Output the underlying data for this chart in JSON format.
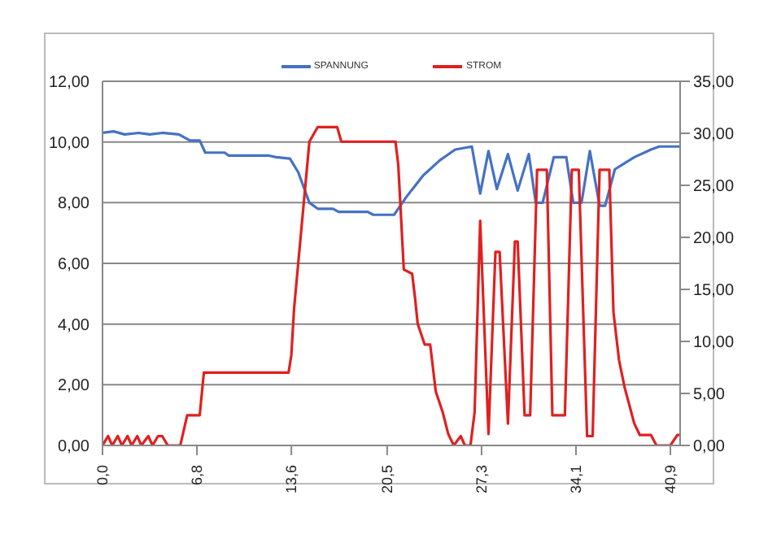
{
  "chart_data": {
    "type": "line",
    "xlim": [
      0,
      41.6
    ],
    "xticks": [
      {
        "value": 0,
        "label": "0,0"
      },
      {
        "value": 6.8,
        "label": "6,8"
      },
      {
        "value": 13.6,
        "label": "13,6"
      },
      {
        "value": 20.5,
        "label": "20,5"
      },
      {
        "value": 27.3,
        "label": "27,3"
      },
      {
        "value": 34.1,
        "label": "34,1"
      },
      {
        "value": 40.9,
        "label": "40,9"
      }
    ],
    "ylim": [
      0,
      12
    ],
    "yticks": [
      {
        "value": 0,
        "label": "0,00"
      },
      {
        "value": 2,
        "label": "2,00"
      },
      {
        "value": 4,
        "label": "4,00"
      },
      {
        "value": 6,
        "label": "6,00"
      },
      {
        "value": 8,
        "label": "8,00"
      },
      {
        "value": 10,
        "label": "10,00"
      },
      {
        "value": 12,
        "label": "12,00"
      }
    ],
    "y2lim": [
      0,
      35
    ],
    "y2ticks": [
      {
        "value": 0,
        "label": "0,00"
      },
      {
        "value": 5,
        "label": "5,00"
      },
      {
        "value": 10,
        "label": "10,00"
      },
      {
        "value": 15,
        "label": "15,00"
      },
      {
        "value": 20,
        "label": "20,00"
      },
      {
        "value": 25,
        "label": "25,00"
      },
      {
        "value": 30,
        "label": "30,00"
      },
      {
        "value": 35,
        "label": "35,00"
      }
    ],
    "grid": "y",
    "legend": "top",
    "marker": "none",
    "line_style": "solid",
    "series": [
      {
        "name": "SPANNUNG",
        "color": "#4472c4",
        "x": [
          0,
          0.8,
          1.6,
          2.6,
          3.4,
          4.3,
          5.5,
          6.3,
          7.0,
          7.4,
          8.8,
          9.1,
          12.0,
          12.5,
          13.5,
          14.1,
          14.9,
          15.5,
          16.6,
          17.0,
          19.1,
          19.5,
          21.0,
          21.9,
          23.1,
          24.3,
          25.4,
          26.6,
          27.2,
          27.8,
          28.4,
          29.2,
          29.9,
          30.7,
          31.2,
          31.7,
          32.5,
          33.4,
          33.9,
          34.5,
          35.1,
          35.8,
          36.2,
          36.9,
          38.3,
          39.5,
          40.1,
          41.6
        ],
        "values": [
          10.3,
          10.35,
          10.25,
          10.3,
          10.25,
          10.3,
          10.25,
          10.05,
          10.05,
          9.65,
          9.65,
          9.55,
          9.55,
          9.5,
          9.45,
          9.0,
          8.0,
          7.8,
          7.8,
          7.7,
          7.7,
          7.6,
          7.6,
          8.2,
          8.9,
          9.4,
          9.75,
          9.85,
          8.3,
          9.7,
          8.45,
          9.6,
          8.4,
          9.6,
          8.0,
          8.0,
          9.5,
          9.5,
          8.0,
          8.0,
          9.7,
          7.9,
          7.9,
          9.1,
          9.5,
          9.75,
          9.85,
          9.85
        ]
      },
      {
        "name": "STROM",
        "color": "#e02020",
        "axis": "y2",
        "x": [
          0,
          0.4,
          0.7,
          1.1,
          1.4,
          1.8,
          2.1,
          2.5,
          2.8,
          3.3,
          3.6,
          4.0,
          4.3,
          4.7,
          5.6,
          6.1,
          7.0,
          7.3,
          13.4,
          13.6,
          13.8,
          14.9,
          15.5,
          16.9,
          17.2,
          21.1,
          21.3,
          21.7,
          22.3,
          22.5,
          22.7,
          23.2,
          23.6,
          24.0,
          24.5,
          24.9,
          25.3,
          25.8,
          26.1,
          26.5,
          26.8,
          27.2,
          27.8,
          28.3,
          28.6,
          29.2,
          29.7,
          29.9,
          30.4,
          30.8,
          31.3,
          32.0,
          32.4,
          33.3,
          33.8,
          34.3,
          34.9,
          35.3,
          35.8,
          36.5,
          36.8,
          37.2,
          37.6,
          38.3,
          38.7,
          39.5,
          39.9,
          40.9,
          41.4,
          41.6
        ],
        "values": [
          0,
          0.9,
          0,
          0.9,
          0,
          0.9,
          0,
          0.9,
          0,
          0.9,
          0,
          0.9,
          0.9,
          0,
          0,
          2.9,
          2.9,
          7.0,
          7.0,
          8.7,
          13.2,
          29.2,
          30.6,
          30.6,
          29.2,
          29.2,
          27,
          16.9,
          16.5,
          14.3,
          11.7,
          9.7,
          9.7,
          5.2,
          3.2,
          1.1,
          0,
          0.9,
          0,
          0,
          3.2,
          21.6,
          1.1,
          18.6,
          18.6,
          2.1,
          19.6,
          19.6,
          2.9,
          2.9,
          26.5,
          26.5,
          2.9,
          2.9,
          26.5,
          26.5,
          0.9,
          0.9,
          26.5,
          26.5,
          12.8,
          8.2,
          5.6,
          2.1,
          1,
          1,
          0,
          0,
          1,
          1
        ]
      }
    ]
  }
}
